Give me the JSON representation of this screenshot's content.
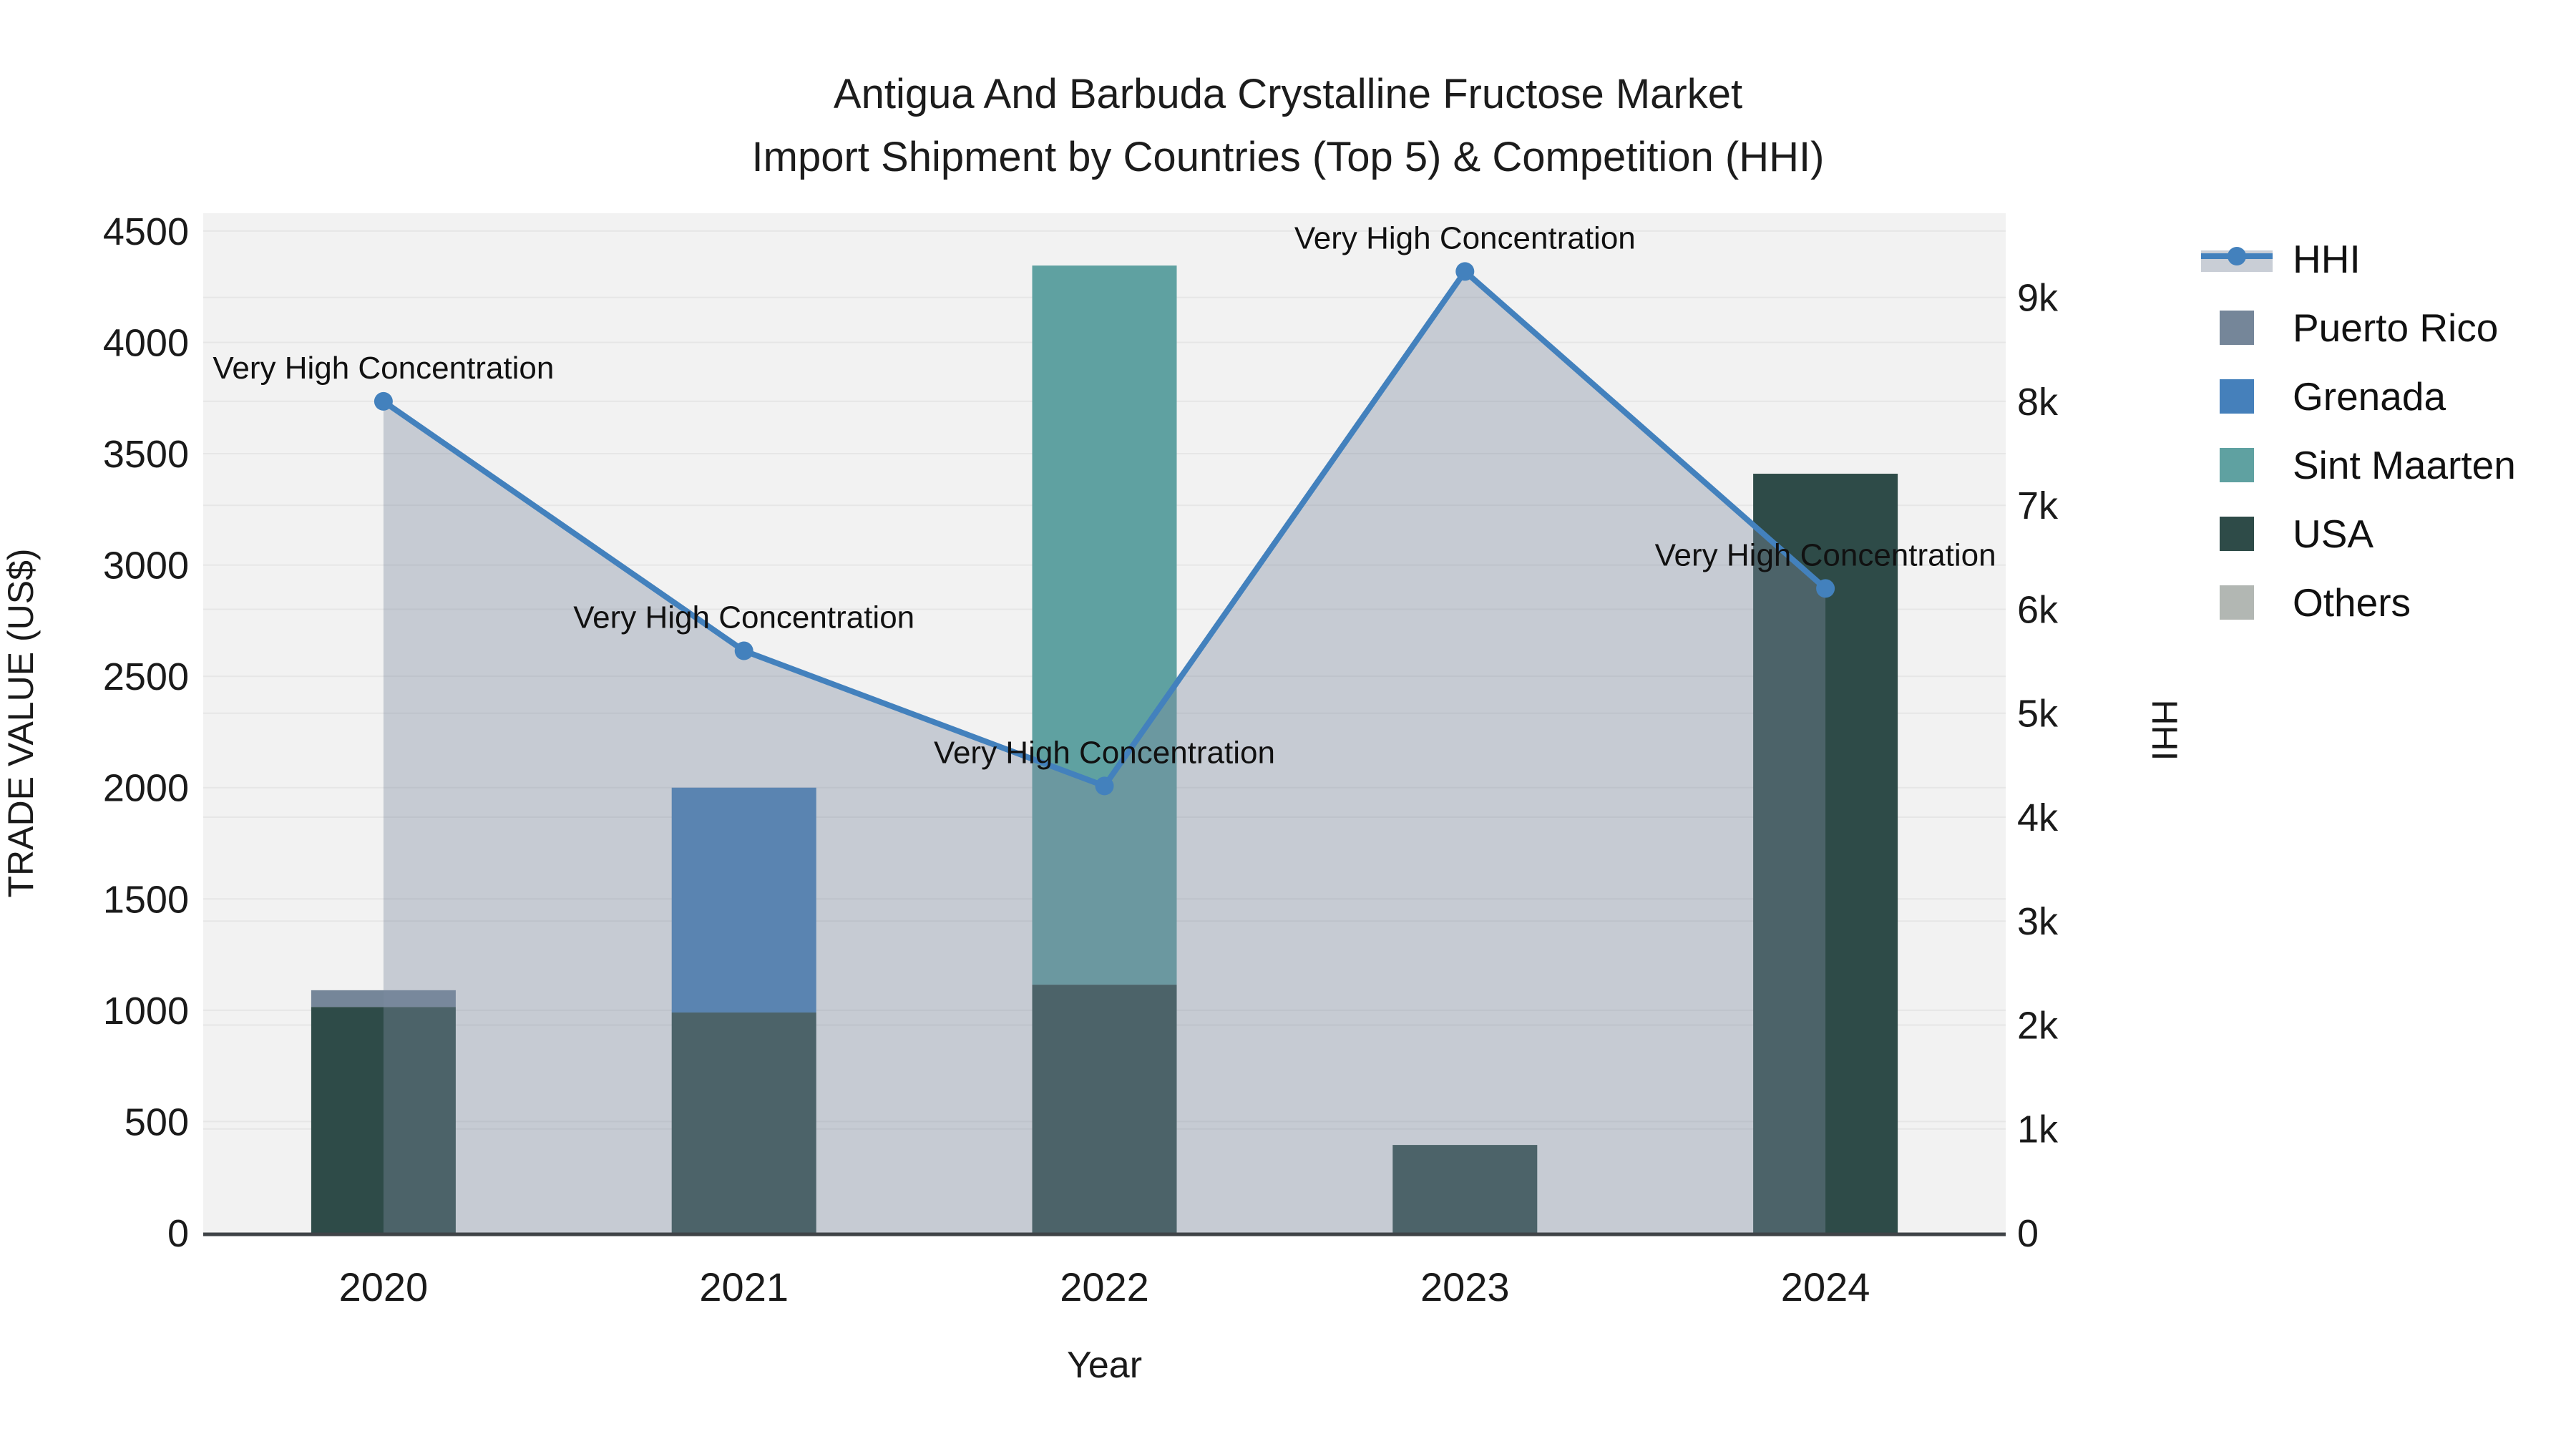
{
  "title": {
    "line1": "Antigua And Barbuda Crystalline Fructose Market",
    "line2": "Import Shipment by Countries (Top 5) & Competition (HHI)"
  },
  "legend": {
    "items": [
      {
        "label": "HHI",
        "kind": "line",
        "color": "#4381bd",
        "band_color": "#c9ced6"
      },
      {
        "label": "Puerto Rico",
        "kind": "swatch",
        "color": "#758699"
      },
      {
        "label": "Grenada",
        "kind": "swatch",
        "color": "#4580bb"
      },
      {
        "label": "Sint Maarten",
        "kind": "swatch",
        "color": "#5fa1a1"
      },
      {
        "label": "USA",
        "kind": "swatch",
        "color": "#2e4b48"
      },
      {
        "label": "Others",
        "kind": "swatch",
        "color": "#b2b7b3"
      }
    ]
  },
  "chart_data": {
    "type": "bar",
    "subtype": "stacked-bars-with-line-overlay",
    "categories": [
      "2020",
      "2021",
      "2022",
      "2023",
      "2024"
    ],
    "bar_series": [
      {
        "name": "Puerto Rico",
        "color": "#758699",
        "values": [
          75,
          0,
          0,
          0,
          0
        ]
      },
      {
        "name": "Grenada",
        "color": "#4580bb",
        "values": [
          0,
          1010,
          0,
          0,
          0
        ]
      },
      {
        "name": "Sint Maarten",
        "color": "#5fa1a1",
        "values": [
          0,
          0,
          3230,
          0,
          0
        ]
      },
      {
        "name": "USA",
        "color": "#2e4b48",
        "values": [
          1015,
          990,
          1115,
          395,
          3410
        ]
      },
      {
        "name": "Others",
        "color": "#b2b7b3",
        "values": [
          0,
          0,
          0,
          0,
          0
        ]
      }
    ],
    "stack_order_bottom_to_top": [
      "USA",
      "Puerto Rico",
      "Grenada",
      "Sint Maarten",
      "Others"
    ],
    "line_series": {
      "name": "HHI",
      "axis": "right",
      "color": "#4381bd",
      "fill_color": "rgba(127,140,160,0.38)",
      "values": [
        8000,
        5600,
        4300,
        9250,
        6200
      ]
    },
    "annotations": [
      {
        "text": "Very High Concentration",
        "category": "2020"
      },
      {
        "text": "Very High Concentration",
        "category": "2021"
      },
      {
        "text": "Very High Concentration",
        "category": "2022"
      },
      {
        "text": "Very High Concentration",
        "category": "2023"
      },
      {
        "text": "Very High Concentration",
        "category": "2024"
      }
    ],
    "left_axis": {
      "title": "TRADE VALUE (US$)",
      "tick_values": [
        0,
        500,
        1000,
        1500,
        2000,
        2500,
        3000,
        3500,
        4000,
        4500
      ],
      "tick_labels": [
        "0",
        "500",
        "1000",
        "1500",
        "2000",
        "2500",
        "3000",
        "3500",
        "4000",
        "4500"
      ],
      "range": [
        0,
        4580
      ]
    },
    "right_axis": {
      "title": "HHI",
      "tick_values": [
        0,
        1000,
        2000,
        3000,
        4000,
        5000,
        6000,
        7000,
        8000,
        9000
      ],
      "tick_labels": [
        "0",
        "1k",
        "2k",
        "3k",
        "4k",
        "5k",
        "6k",
        "7k",
        "8k",
        "9k"
      ],
      "range": [
        0,
        9810
      ]
    },
    "x_axis": {
      "title": "Year"
    },
    "grid": true,
    "legend_position": "right"
  },
  "colors": {
    "plot_bg": "#f2f2f2",
    "grid": "#e6e6e6",
    "axis_line": "#3f4347",
    "text": "#1a1a1a",
    "annotation_text": "#111111"
  }
}
